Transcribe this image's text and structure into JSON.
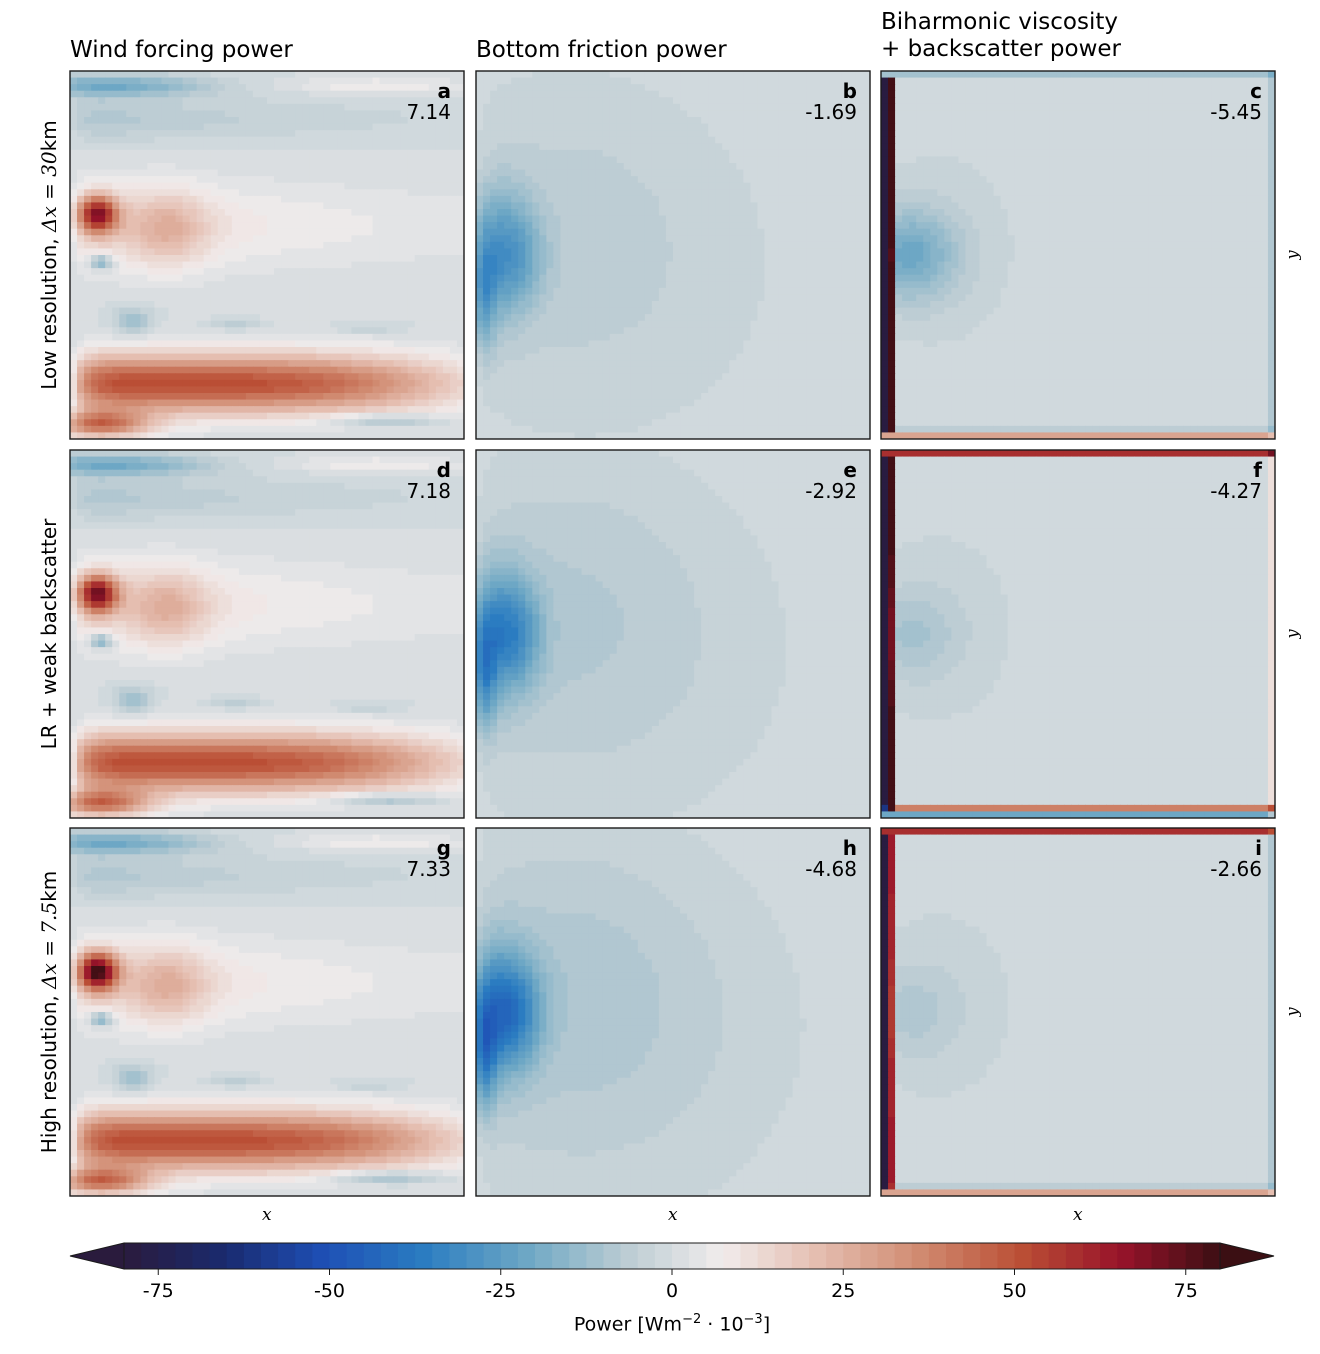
{
  "chart_data": {
    "type": "heatmap",
    "column_titles": [
      "Wind forcing power",
      "Bottom friction power",
      "Biharmonic viscosity\n+ backscatter power"
    ],
    "row_labels": [
      {
        "pre": "Low resolution, ",
        "math": "Δx = 30",
        "post": "km"
      },
      {
        "pre": "LR + weak backscatter",
        "math": "",
        "post": ""
      },
      {
        "pre": "High resolution, ",
        "math": "Δx = 7.5",
        "post": "km"
      }
    ],
    "panels": [
      {
        "letter": "a",
        "value": "7.14",
        "field": "wind"
      },
      {
        "letter": "b",
        "value": "-1.69",
        "field": "friction"
      },
      {
        "letter": "c",
        "value": "-5.45",
        "field": "viscosity"
      },
      {
        "letter": "d",
        "value": "7.18",
        "field": "wind"
      },
      {
        "letter": "e",
        "value": "-2.92",
        "field": "friction"
      },
      {
        "letter": "f",
        "value": "-4.27",
        "field": "viscosity"
      },
      {
        "letter": "g",
        "value": "7.33",
        "field": "wind"
      },
      {
        "letter": "h",
        "value": "-4.68",
        "field": "friction"
      },
      {
        "letter": "i",
        "value": "-2.66",
        "field": "viscosity"
      }
    ],
    "xlabel": "x",
    "ylabel": "y",
    "colorbar": {
      "label_pre": "Power [Wm",
      "label_sup1": "−2",
      "label_mid": " · 10",
      "label_sup2": "−3",
      "label_post": "]",
      "min": -80,
      "max": 80,
      "levels": 64,
      "extend": "both",
      "ticks": [
        -75,
        -50,
        -25,
        0,
        25,
        50,
        75
      ],
      "tick_labels": [
        "-75",
        "-50",
        "-25",
        "0",
        "25",
        "50",
        "75"
      ],
      "colormap": "balance",
      "color_stops": [
        "#2a1b3d",
        "#1a2a6e",
        "#1e4fb5",
        "#2a7cc1",
        "#6aa6c4",
        "#b9cbd2",
        "#f1ecec",
        "#e4bcae",
        "#d08a70",
        "#bb4f35",
        "#98132a",
        "#3b0f13"
      ]
    }
  }
}
